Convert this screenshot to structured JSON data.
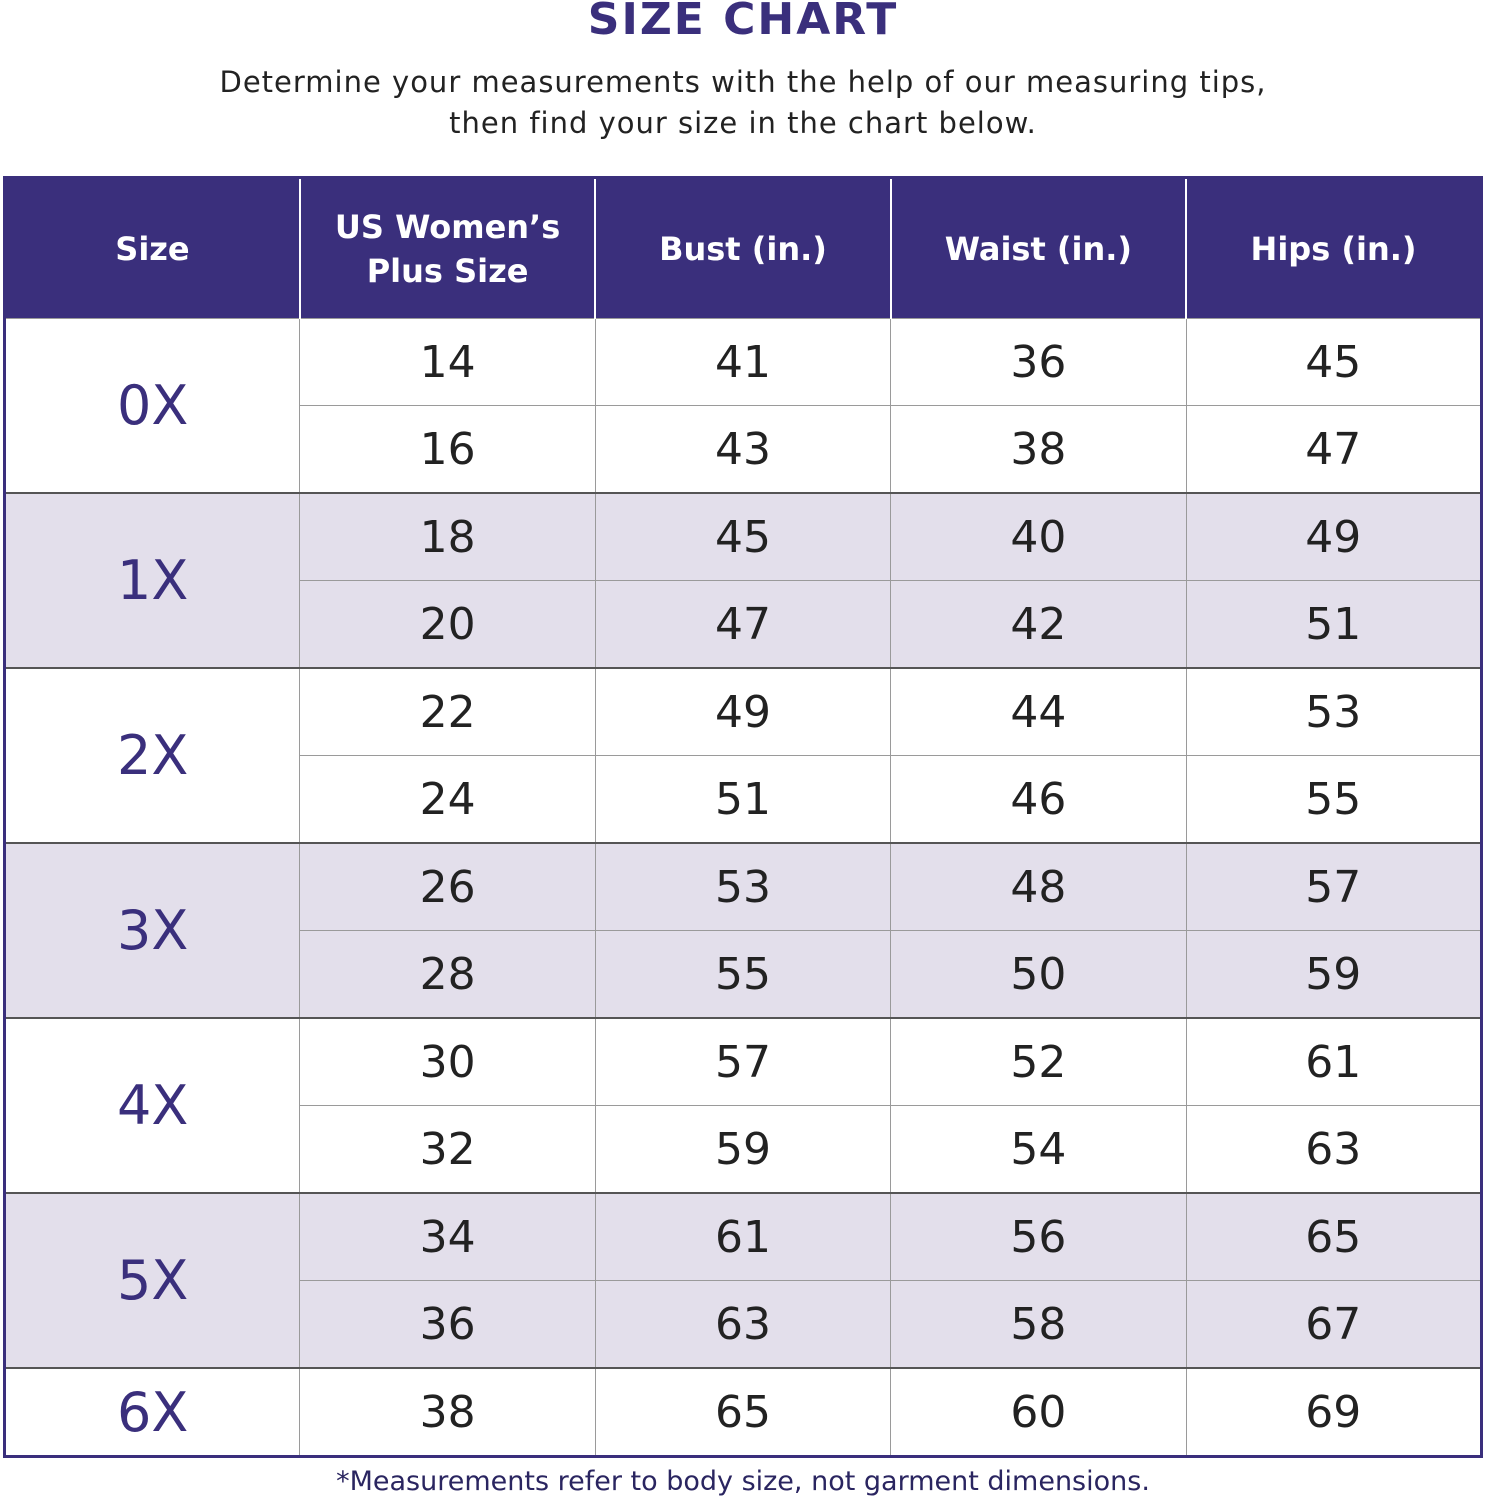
{
  "title": "SIZE CHART",
  "subtitle_line1": "Determine your measurements with the help of our measuring tips,",
  "subtitle_line2": "then find your size in the chart below.",
  "colors": {
    "header_bg": "#3a2f7c",
    "accent_text": "#3a2f7c",
    "shaded_row": "#e3dfeb"
  },
  "table": {
    "headers": [
      "Size",
      "US Women’s Plus Size",
      "Bust (in.)",
      "Waist (in.)",
      "Hips (in.)"
    ],
    "groups": [
      {
        "size": "0X",
        "rows": [
          [
            "14",
            "41",
            "36",
            "45"
          ],
          [
            "16",
            "43",
            "38",
            "47"
          ]
        ]
      },
      {
        "size": "1X",
        "rows": [
          [
            "18",
            "45",
            "40",
            "49"
          ],
          [
            "20",
            "47",
            "42",
            "51"
          ]
        ]
      },
      {
        "size": "2X",
        "rows": [
          [
            "22",
            "49",
            "44",
            "53"
          ],
          [
            "24",
            "51",
            "46",
            "55"
          ]
        ]
      },
      {
        "size": "3X",
        "rows": [
          [
            "26",
            "53",
            "48",
            "57"
          ],
          [
            "28",
            "55",
            "50",
            "59"
          ]
        ]
      },
      {
        "size": "4X",
        "rows": [
          [
            "30",
            "57",
            "52",
            "61"
          ],
          [
            "32",
            "59",
            "54",
            "63"
          ]
        ]
      },
      {
        "size": "5X",
        "rows": [
          [
            "34",
            "61",
            "56",
            "65"
          ],
          [
            "36",
            "63",
            "58",
            "67"
          ]
        ]
      },
      {
        "size": "6X",
        "rows": [
          [
            "38",
            "65",
            "60",
            "69"
          ]
        ]
      }
    ]
  },
  "footnote": "*Measurements refer to body size, not garment dimensions."
}
